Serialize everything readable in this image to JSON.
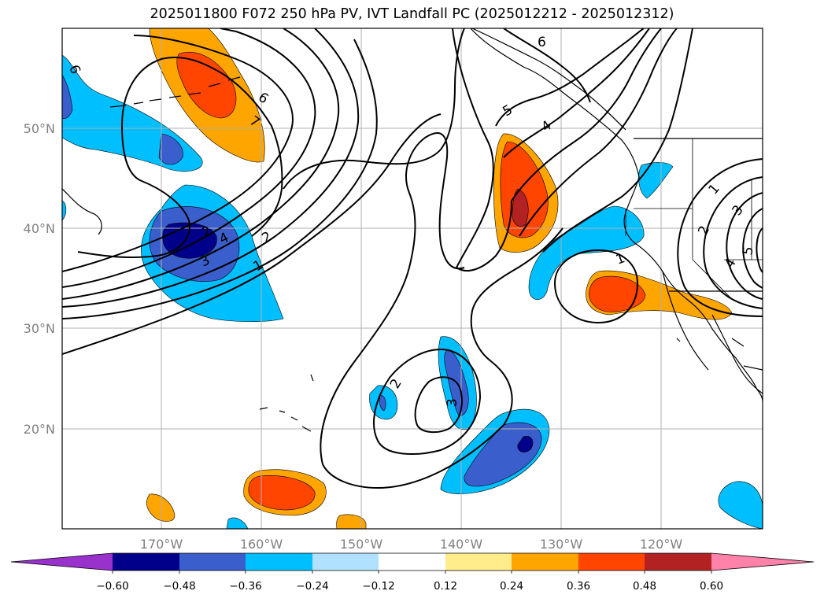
{
  "title": "2025011800 F072 250 hPa PV, IVT Landfall PC (2025012212 - 2025012312)",
  "map": {
    "lat_labels": [
      "50°N",
      "40°N",
      "30°N",
      "20°N"
    ],
    "lon_labels": [
      "170°W",
      "160°W",
      "150°W",
      "140°W",
      "130°W",
      "120°W"
    ],
    "contour_labels": [
      "6",
      "7",
      "6",
      "2",
      "3",
      "4",
      "2",
      "1",
      "5",
      "4",
      "6",
      "1",
      "2",
      "3",
      "2",
      "1",
      "3",
      "4",
      "5",
      "3",
      "2",
      "1"
    ]
  },
  "colorbar": {
    "ticks": [
      "−0.60",
      "−0.48",
      "−0.36",
      "−0.24",
      "−0.12",
      "0.12",
      "0.24",
      "0.36",
      "0.48",
      "0.60"
    ],
    "colors": [
      "#9932cc",
      "#00008b",
      "#3a5fcd",
      "#00bfff",
      "#b0e2ff",
      "#ffffff",
      "#ffec8b",
      "#ffa500",
      "#ff4500",
      "#b22222",
      "#ff82ab"
    ]
  }
}
